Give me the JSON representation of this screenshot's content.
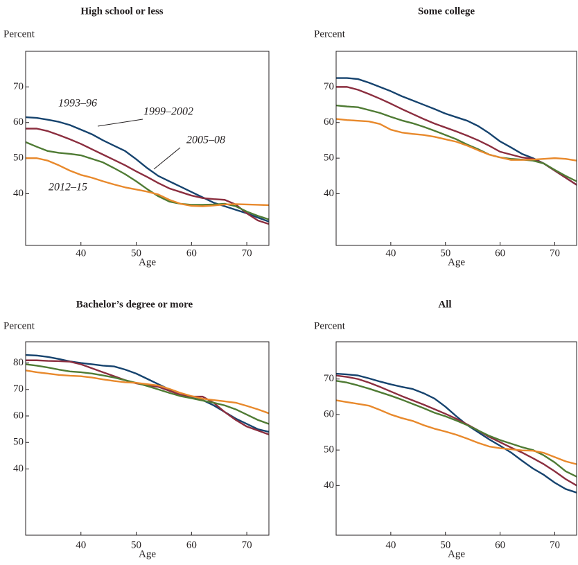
{
  "chart_data": [
    {
      "type": "line",
      "title": "High school or less",
      "y_label": "Percent",
      "x_label": "Age",
      "x": [
        30,
        32,
        34,
        36,
        38,
        40,
        42,
        44,
        46,
        48,
        50,
        52,
        54,
        56,
        58,
        60,
        62,
        64,
        66,
        68,
        70,
        72,
        74
      ],
      "xlim": [
        30,
        74
      ],
      "xticks": [
        40,
        50,
        60,
        70
      ],
      "ylim": [
        25.5,
        80
      ],
      "yticks": [
        40,
        50,
        60,
        70
      ],
      "series": [
        {
          "name": "1993–96",
          "color": "#16436e",
          "values": [
            61.5,
            61.3,
            60.8,
            60.2,
            59.3,
            58,
            56.7,
            55,
            53.5,
            52,
            49.7,
            47.2,
            45,
            43.5,
            42,
            40.5,
            39,
            37.5,
            36.5,
            35.5,
            34.5,
            33.3,
            32.2
          ]
        },
        {
          "name": "1999–2002",
          "color": "#8b2e3f",
          "values": [
            58.3,
            58.3,
            57.6,
            56.5,
            55.3,
            54,
            52.5,
            51,
            49.5,
            48,
            46.3,
            44.7,
            43,
            41.5,
            40.5,
            39.5,
            38.8,
            38.5,
            38.3,
            37,
            34.5,
            32.5,
            31.5
          ]
        },
        {
          "name": "2005–08",
          "color": "#4f7b34",
          "values": [
            54.5,
            53.2,
            52,
            51.5,
            51.2,
            50.8,
            49.8,
            48.8,
            47.2,
            45.5,
            43.5,
            41.3,
            39.3,
            37.8,
            37.2,
            36.9,
            36.9,
            37,
            37.2,
            36.5,
            35,
            33.8,
            32.8
          ]
        },
        {
          "name": "2012–15",
          "color": "#e8892c",
          "values": [
            50,
            50,
            49.3,
            48,
            46.5,
            45.3,
            44.5,
            43.5,
            42.6,
            41.8,
            41.2,
            40.6,
            39.8,
            38.3,
            37.2,
            36.6,
            36.5,
            36.7,
            37,
            37.1,
            37,
            36.9,
            36.8
          ]
        }
      ]
    },
    {
      "type": "line",
      "title": "Some college",
      "y_label": "Percent",
      "x_label": "Age",
      "x": [
        30,
        32,
        34,
        36,
        38,
        40,
        42,
        44,
        46,
        48,
        50,
        52,
        54,
        56,
        58,
        60,
        62,
        64,
        66,
        68,
        70,
        72,
        74
      ],
      "xlim": [
        30,
        74
      ],
      "xticks": [
        40,
        50,
        60,
        70
      ],
      "ylim": [
        25.5,
        80
      ],
      "yticks": [
        40,
        50,
        60,
        70
      ],
      "series": [
        {
          "color": "#16436e",
          "values": [
            72.5,
            72.5,
            72.2,
            71.2,
            70,
            68.8,
            67.4,
            66.2,
            65,
            63.8,
            62.5,
            61.5,
            60.5,
            59,
            57,
            54.7,
            53,
            51.2,
            50,
            48.5,
            46.5,
            44.5,
            42.5
          ]
        },
        {
          "color": "#8b2e3f",
          "values": [
            70,
            70,
            69.2,
            68,
            66.7,
            65.3,
            63.8,
            62.4,
            61,
            59.7,
            58.6,
            57.5,
            56.3,
            55,
            53.5,
            51.8,
            51,
            50.2,
            49.8,
            48.5,
            46.5,
            44.5,
            42.5
          ]
        },
        {
          "color": "#4f7b34",
          "values": [
            64.8,
            64.5,
            64.3,
            63.5,
            62.7,
            61.6,
            60.6,
            59.8,
            58.8,
            57.7,
            56.5,
            55.3,
            53.8,
            52.5,
            51,
            50.2,
            49.8,
            49.6,
            49.3,
            48.5,
            46.7,
            45,
            43.5
          ]
        },
        {
          "color": "#e8892c",
          "values": [
            61,
            60.7,
            60.5,
            60.3,
            59.6,
            58,
            57.2,
            56.8,
            56.5,
            56,
            55.3,
            54.6,
            53.5,
            52.2,
            51,
            50.2,
            49.5,
            49.5,
            49.6,
            49.8,
            50,
            49.8,
            49.3
          ]
        }
      ]
    },
    {
      "type": "line",
      "title": "Bachelor’s degree or more",
      "y_label": "Percent",
      "x_label": "Age",
      "x": [
        30,
        32,
        34,
        36,
        38,
        40,
        42,
        44,
        46,
        48,
        50,
        52,
        54,
        56,
        58,
        60,
        62,
        64,
        66,
        68,
        70,
        72,
        74
      ],
      "xlim": [
        30,
        74
      ],
      "xticks": [
        40,
        50,
        60,
        70
      ],
      "ylim": [
        15,
        88
      ],
      "yticks": [
        40,
        50,
        60,
        70,
        80
      ],
      "series": [
        {
          "color": "#16436e",
          "values": [
            83,
            82.8,
            82.3,
            81.5,
            80.6,
            80,
            79.5,
            79,
            78.7,
            77.5,
            76,
            74,
            72,
            70,
            67.5,
            66.8,
            66,
            64,
            61.5,
            59,
            57,
            55,
            54
          ]
        },
        {
          "color": "#8b2e3f",
          "values": [
            81,
            81,
            80.8,
            80.7,
            80.5,
            79.5,
            78,
            76.5,
            75,
            73.5,
            72.3,
            71.5,
            71,
            69.5,
            68,
            67.3,
            67.3,
            65,
            61.5,
            58.5,
            56,
            54.5,
            53
          ]
        },
        {
          "color": "#4f7b34",
          "values": [
            79.5,
            79,
            78.3,
            77.5,
            76.8,
            76.5,
            76,
            75.3,
            74.5,
            73.5,
            72.5,
            71.3,
            70,
            68.7,
            67.5,
            66.7,
            65.8,
            65,
            64,
            62.5,
            60.5,
            58.5,
            57
          ]
        },
        {
          "color": "#e8892c",
          "values": [
            77.2,
            76.5,
            76,
            75.5,
            75.2,
            75,
            74.5,
            73.8,
            73.2,
            72.7,
            72.5,
            72,
            71.5,
            70.2,
            68.7,
            67.5,
            66.5,
            66,
            65.5,
            65,
            63.8,
            62.5,
            61
          ]
        }
      ]
    },
    {
      "type": "line",
      "title": "All",
      "y_label": "Percent",
      "x_label": "Age",
      "x": [
        30,
        32,
        34,
        36,
        38,
        40,
        42,
        44,
        46,
        48,
        50,
        52,
        54,
        56,
        58,
        60,
        62,
        64,
        66,
        68,
        70,
        72,
        74
      ],
      "xlim": [
        30,
        74
      ],
      "xticks": [
        40,
        50,
        60,
        70
      ],
      "ylim": [
        26,
        80.5
      ],
      "yticks": [
        40,
        50,
        60,
        70
      ],
      "series": [
        {
          "color": "#16436e",
          "values": [
            71.5,
            71.3,
            71,
            70.2,
            69.3,
            68.5,
            67.8,
            67.2,
            66,
            64.5,
            62.2,
            59.5,
            57,
            55,
            53,
            51.2,
            49.3,
            47,
            44.8,
            43,
            40.8,
            39,
            38
          ]
        },
        {
          "color": "#8b2e3f",
          "values": [
            71,
            70.6,
            70,
            69,
            67.8,
            66.5,
            65.2,
            64,
            62.8,
            61.5,
            60.2,
            58.8,
            57.2,
            55.5,
            53.7,
            52.2,
            50.7,
            49.3,
            47.7,
            46,
            44,
            41.8,
            40
          ]
        },
        {
          "color": "#4f7b34",
          "values": [
            69.5,
            69,
            68.2,
            67.3,
            66.3,
            65.3,
            64.2,
            63,
            61.8,
            60.5,
            59.5,
            58.3,
            57,
            55.5,
            54,
            52.8,
            51.8,
            50.8,
            50,
            48.5,
            46.5,
            44,
            42.5
          ]
        },
        {
          "color": "#e8892c",
          "values": [
            64,
            63.5,
            63,
            62.5,
            61.3,
            60,
            59,
            58.2,
            57,
            56,
            55.2,
            54.3,
            53.2,
            52,
            51,
            50.5,
            50.2,
            49.9,
            49.8,
            49.2,
            48,
            46.8,
            46
          ]
        }
      ]
    }
  ]
}
